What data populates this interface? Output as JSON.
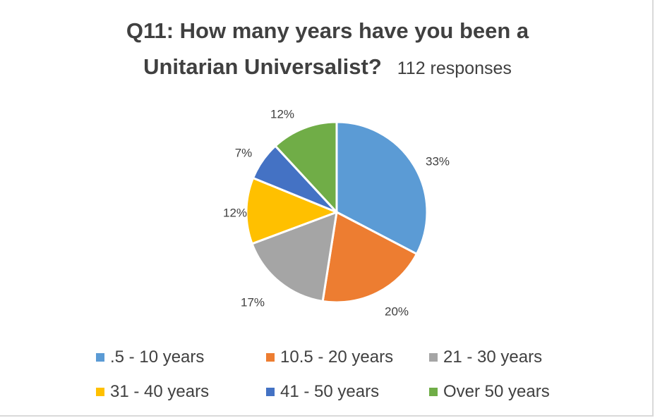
{
  "chart_data": {
    "type": "pie",
    "title": "Q11: How many years have you been a Unitarian Universalist?",
    "title_line1": "Q11: How many years have you been a",
    "title_line2": "Unitarian Universalist?",
    "subtitle": "112 responses",
    "legend_position": "bottom",
    "slices": [
      {
        "label": ".5 - 10 years",
        "value": 33,
        "data_label": "33%",
        "color": "#5b9bd5"
      },
      {
        "label": "10.5 - 20 years",
        "value": 20,
        "data_label": "20%",
        "color": "#ed7d31"
      },
      {
        "label": "21 - 30 years",
        "value": 17,
        "data_label": "17%",
        "color": "#a5a5a5"
      },
      {
        "label": "31 - 40 years",
        "value": 12,
        "data_label": "12%",
        "color": "#ffc000"
      },
      {
        "label": "41 - 50 years",
        "value": 7,
        "data_label": "7%",
        "color": "#4472c4"
      },
      {
        "label": "Over 50 years",
        "value": 12,
        "data_label": "12%",
        "color": "#70ad47"
      }
    ]
  }
}
